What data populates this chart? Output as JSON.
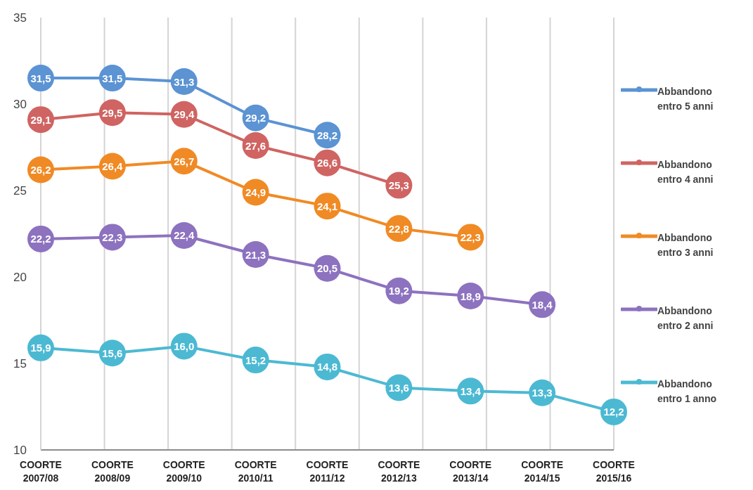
{
  "chart_data": {
    "type": "line",
    "categories": [
      "COORTE 2007/08",
      "COORTE 2008/09",
      "COORTE 2009/10",
      "COORTE 2010/11",
      "COORTE 2011/12",
      "COORTE 2012/13",
      "COORTE 2013/14",
      "COORTE 2014/15",
      "COORTE 2015/16"
    ],
    "series": [
      {
        "name": "Abbandono entro 5 anni",
        "color": "#5b93d3",
        "values": [
          31.5,
          31.5,
          31.3,
          29.2,
          28.2,
          null,
          null,
          null,
          null
        ],
        "value_labels": [
          "31,5",
          "31,5",
          "31,3",
          "29,2",
          "28,2",
          null,
          null,
          null,
          null
        ]
      },
      {
        "name": "Abbandono entro 4 anni",
        "color": "#cf6462",
        "values": [
          29.1,
          29.5,
          29.4,
          27.6,
          26.6,
          25.3,
          null,
          null,
          null
        ],
        "value_labels": [
          "29,1",
          "29,5",
          "29,4",
          "27,6",
          "26,6",
          "25,3",
          null,
          null,
          null
        ]
      },
      {
        "name": "Abbandono entro 3 anni",
        "color": "#f08a24",
        "values": [
          26.2,
          26.4,
          26.7,
          24.9,
          24.1,
          22.8,
          22.3,
          null,
          null
        ],
        "value_labels": [
          "26,2",
          "26,4",
          "26,7",
          "24,9",
          "24,1",
          "22,8",
          "22,3",
          null,
          null
        ]
      },
      {
        "name": "Abbandono entro 2 anni",
        "color": "#8d72bf",
        "values": [
          22.2,
          22.3,
          22.4,
          21.3,
          20.5,
          19.2,
          18.9,
          18.4,
          null
        ],
        "value_labels": [
          "22,2",
          "22,3",
          "22,4",
          "21,3",
          "20,5",
          "19,2",
          "18,9",
          "18,4",
          null
        ]
      },
      {
        "name": "Abbandono entro 1 anno",
        "color": "#4cb9d3",
        "values": [
          15.9,
          15.6,
          16.0,
          15.2,
          14.8,
          13.6,
          13.4,
          13.3,
          12.2
        ],
        "value_labels": [
          "15,9",
          "15,6",
          "16,0",
          "15,2",
          "14,8",
          "13,6",
          "13,4",
          "13,3",
          "12,2"
        ]
      }
    ],
    "ylim": [
      10,
      35
    ],
    "yticks": [
      10,
      15,
      20,
      25,
      30,
      35
    ],
    "grid": "x",
    "legend": "right",
    "marker": "circle",
    "line_style": "solid"
  }
}
